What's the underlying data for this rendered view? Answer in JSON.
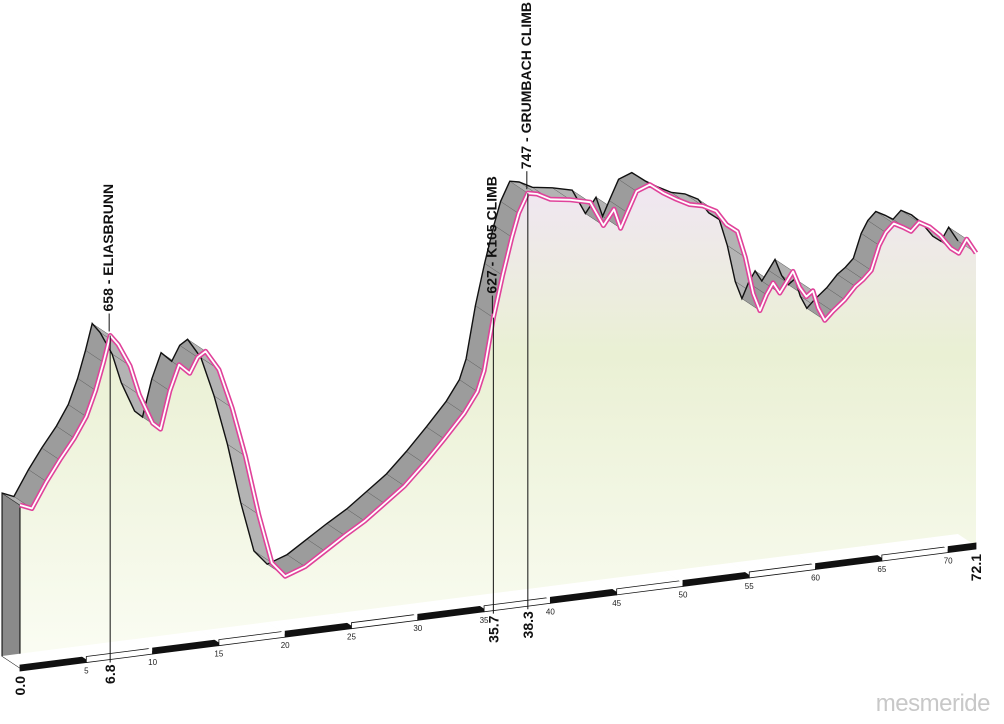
{
  "chart_data": {
    "type": "area",
    "title": "",
    "xlabel": "",
    "ylabel": "",
    "x_unit": "km",
    "xlim": [
      0,
      72.1
    ],
    "x_ticks": [
      5,
      10,
      15,
      20,
      25,
      30,
      35,
      40,
      45,
      50,
      55,
      60,
      65,
      70
    ],
    "distance_markers": [
      "0.0",
      "6.8",
      "35.7",
      "38.3",
      "72.1"
    ],
    "climbs": [
      {
        "km": 6.8,
        "label": "658 - ELIASBRUNN"
      },
      {
        "km": 35.7,
        "label": "627 - K105 CLIMB"
      },
      {
        "km": 38.3,
        "label": "747 - GRUMBACH CLIMB"
      }
    ],
    "profile": [
      [
        0,
        500
      ],
      [
        0.9,
        495
      ],
      [
        2.0,
        520
      ],
      [
        3.0,
        540
      ],
      [
        4.1,
        560
      ],
      [
        5.0,
        580
      ],
      [
        5.7,
        605
      ],
      [
        6.3,
        632
      ],
      [
        6.8,
        658
      ],
      [
        7.4,
        648
      ],
      [
        8.3,
        625
      ],
      [
        9.0,
        595
      ],
      [
        10.0,
        565
      ],
      [
        10.6,
        558
      ],
      [
        11.3,
        595
      ],
      [
        12.0,
        620
      ],
      [
        12.8,
        610
      ],
      [
        13.4,
        625
      ],
      [
        14.0,
        630
      ],
      [
        15.0,
        610
      ],
      [
        16.0,
        570
      ],
      [
        17.0,
        520
      ],
      [
        18.0,
        460
      ],
      [
        19.0,
        410
      ],
      [
        20.0,
        395
      ],
      [
        21.5,
        402
      ],
      [
        23.0,
        415
      ],
      [
        24.5,
        428
      ],
      [
        26.0,
        440
      ],
      [
        27.5,
        455
      ],
      [
        29.0,
        470
      ],
      [
        30.5,
        490
      ],
      [
        32.0,
        512
      ],
      [
        33.5,
        535
      ],
      [
        34.5,
        555
      ],
      [
        35.0,
        575
      ],
      [
        35.7,
        627
      ],
      [
        36.4,
        668
      ],
      [
        37.1,
        705
      ],
      [
        37.6,
        728
      ],
      [
        38.3,
        747
      ],
      [
        39.0,
        745
      ],
      [
        40.0,
        738
      ],
      [
        41.5,
        735
      ],
      [
        43.0,
        730
      ],
      [
        44.0,
        705
      ],
      [
        44.8,
        720
      ],
      [
        45.3,
        700
      ],
      [
        45.8,
        715
      ],
      [
        46.5,
        735
      ],
      [
        47.5,
        740
      ],
      [
        48.5,
        730
      ],
      [
        49.5,
        722
      ],
      [
        50.5,
        715
      ],
      [
        51.5,
        712
      ],
      [
        52.5,
        705
      ],
      [
        53.3,
        690
      ],
      [
        54.1,
        682
      ],
      [
        54.7,
        655
      ],
      [
        55.3,
        618
      ],
      [
        55.8,
        600
      ],
      [
        56.3,
        615
      ],
      [
        56.8,
        626
      ],
      [
        57.3,
        615
      ],
      [
        57.8,
        625
      ],
      [
        58.3,
        635
      ],
      [
        58.8,
        618
      ],
      [
        59.3,
        608
      ],
      [
        59.8,
        613
      ],
      [
        60.2,
        595
      ],
      [
        60.7,
        582
      ],
      [
        61.3,
        590
      ],
      [
        62.2,
        600
      ],
      [
        63.0,
        612
      ],
      [
        63.6,
        618
      ],
      [
        64.2,
        626
      ],
      [
        64.8,
        650
      ],
      [
        65.3,
        662
      ],
      [
        65.9,
        670
      ],
      [
        66.6,
        665
      ],
      [
        67.2,
        660
      ],
      [
        67.8,
        668
      ],
      [
        68.6,
        662
      ],
      [
        69.4,
        652
      ],
      [
        70.2,
        638
      ],
      [
        70.8,
        632
      ],
      [
        71.4,
        645
      ],
      [
        72.1,
        630
      ]
    ]
  },
  "watermark": "mesmeride"
}
